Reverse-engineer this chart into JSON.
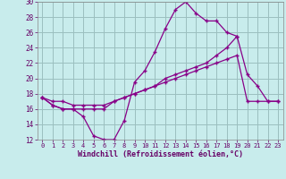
{
  "xlabel": "Windchill (Refroidissement éolien,°C)",
  "bg_color": "#c8ecec",
  "grid_color": "#9bbfbf",
  "line_color": "#880088",
  "xlim": [
    -0.5,
    23.5
  ],
  "ylim": [
    12,
    30
  ],
  "yticks": [
    12,
    14,
    16,
    18,
    20,
    22,
    24,
    26,
    28,
    30
  ],
  "xticks": [
    0,
    1,
    2,
    3,
    4,
    5,
    6,
    7,
    8,
    9,
    10,
    11,
    12,
    13,
    14,
    15,
    16,
    17,
    18,
    19,
    20,
    21,
    22,
    23
  ],
  "series": [
    {
      "x": [
        0,
        1,
        2,
        3,
        4,
        5,
        6,
        7,
        8,
        9,
        10,
        11,
        12,
        13,
        14,
        15,
        16,
        17,
        18,
        19
      ],
      "y": [
        17.5,
        16.5,
        16.0,
        16.0,
        15.0,
        12.5,
        12.0,
        12.0,
        14.5,
        19.5,
        21.0,
        23.5,
        26.5,
        29.0,
        30.0,
        28.5,
        27.5,
        27.5,
        26.0,
        25.5
      ]
    },
    {
      "x": [
        0,
        1,
        2,
        3,
        4,
        5,
        6,
        7,
        8,
        9,
        10,
        11,
        12,
        13,
        14,
        15,
        16,
        17,
        18,
        19,
        20,
        21,
        22,
        23
      ],
      "y": [
        17.5,
        16.5,
        16.0,
        16.0,
        16.0,
        16.0,
        16.0,
        17.0,
        17.5,
        18.0,
        18.5,
        19.0,
        20.0,
        20.5,
        21.0,
        21.5,
        22.0,
        23.0,
        24.0,
        25.5,
        20.5,
        19.0,
        17.0,
        17.0
      ]
    },
    {
      "x": [
        0,
        1,
        2,
        3,
        4,
        5,
        6,
        7,
        8,
        9,
        10,
        11,
        12,
        13,
        14,
        15,
        16,
        17,
        18,
        19,
        20,
        21,
        22,
        23
      ],
      "y": [
        17.5,
        17.0,
        17.0,
        16.5,
        16.5,
        16.5,
        16.5,
        17.0,
        17.5,
        18.0,
        18.5,
        19.0,
        19.5,
        20.0,
        20.5,
        21.0,
        21.5,
        22.0,
        22.5,
        23.0,
        17.0,
        17.0,
        17.0,
        17.0
      ]
    }
  ]
}
